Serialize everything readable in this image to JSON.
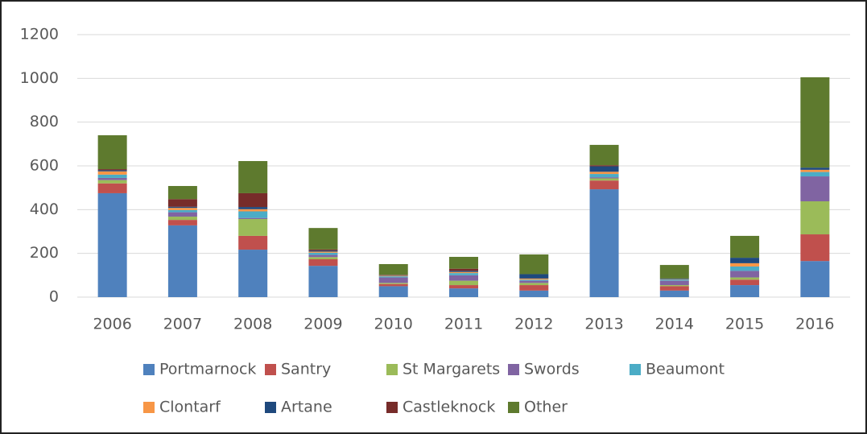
{
  "chart_data": {
    "type": "stacked_bar",
    "categories": [
      "2006",
      "2007",
      "2008",
      "2009",
      "2010",
      "2011",
      "2012",
      "2013",
      "2014",
      "2015",
      "2016"
    ],
    "series": [
      {
        "name": "Portmarnock",
        "color": "#4f81bd",
        "values": [
          475,
          328,
          217,
          143,
          50,
          40,
          30,
          493,
          30,
          55,
          165
        ]
      },
      {
        "name": "Santry",
        "color": "#c0504d",
        "values": [
          45,
          25,
          63,
          30,
          10,
          15,
          25,
          40,
          20,
          25,
          122
        ]
      },
      {
        "name": "St Margarets",
        "color": "#9bbb59",
        "values": [
          15,
          15,
          77,
          10,
          5,
          20,
          10,
          10,
          5,
          10,
          151
        ]
      },
      {
        "name": "Swords",
        "color": "#8064a2",
        "values": [
          10,
          20,
          5,
          10,
          25,
          25,
          10,
          5,
          20,
          30,
          114
        ]
      },
      {
        "name": "Beaumont",
        "color": "#4bacc6",
        "values": [
          15,
          10,
          30,
          10,
          5,
          10,
          5,
          15,
          5,
          20,
          20
        ]
      },
      {
        "name": "Clontarf",
        "color": "#f79646",
        "values": [
          15,
          10,
          10,
          5,
          3,
          5,
          5,
          10,
          2,
          15,
          10
        ]
      },
      {
        "name": "Artane",
        "color": "#1f497d",
        "values": [
          5,
          5,
          10,
          5,
          2,
          5,
          20,
          25,
          3,
          25,
          10
        ]
      },
      {
        "name": "Castleknock",
        "color": "#772c2a",
        "values": [
          5,
          35,
          63,
          5,
          2,
          10,
          0,
          5,
          0,
          0,
          0
        ]
      },
      {
        "name": "Other",
        "color": "#5e7a2e",
        "values": [
          155,
          60,
          147,
          98,
          49,
          54,
          90,
          93,
          62,
          100,
          413
        ]
      }
    ],
    "ylim": [
      0,
      1200
    ],
    "yticks": [
      0,
      200,
      400,
      600,
      800,
      1000,
      1200
    ],
    "grid": true
  }
}
